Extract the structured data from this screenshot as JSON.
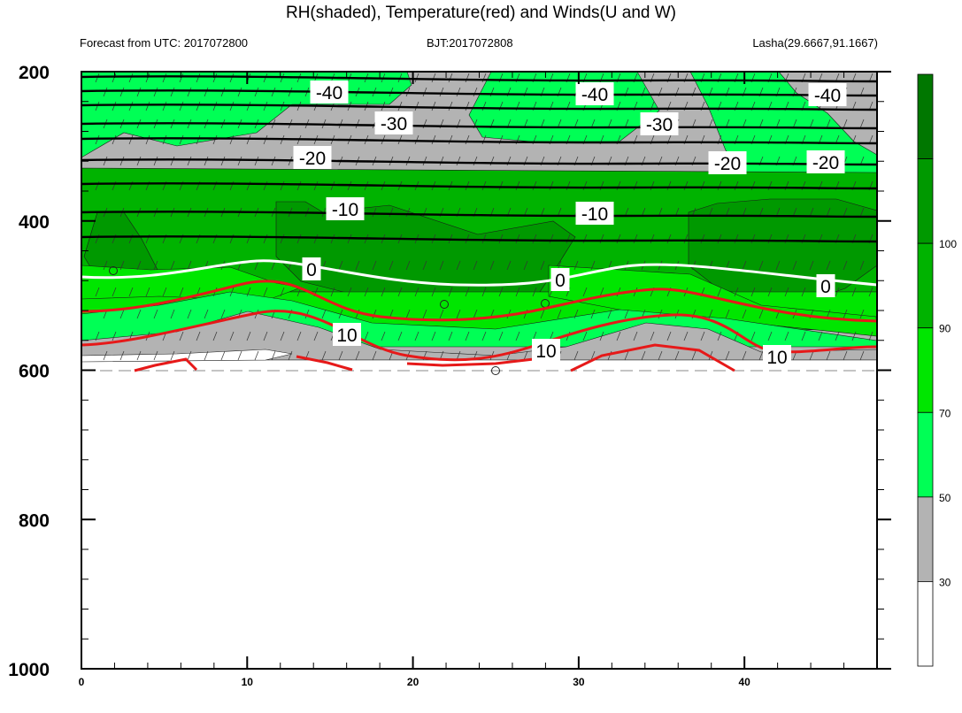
{
  "header": {
    "title": "RH(shaded), Temperature(red) and Winds(U and W)",
    "left": "Forecast from UTC: 2017072800",
    "center": "BJT:2017072808",
    "right": "Lasha(29.6667,91.1667)"
  },
  "chart_data": {
    "type": "contour",
    "title": "RH(shaded), Temperature(red) and Winds(U and W)",
    "x": {
      "range": [
        0,
        48
      ],
      "ticks": [
        "0",
        "10",
        "20",
        "30",
        "40"
      ]
    },
    "y": {
      "range": [
        200,
        1000
      ],
      "ticks": [
        "200",
        "400",
        "600",
        "800",
        "1000"
      ],
      "reversed": true
    },
    "colorbar": {
      "levels": [
        "30",
        "50",
        "70",
        "90",
        "100"
      ],
      "colors": [
        "#ffffff",
        "#b3b3b3",
        "#00ff55",
        "#00e600",
        "#00b300",
        "#009900",
        "#007700"
      ]
    },
    "contour_labels": {
      "cold": [
        "-40",
        "-40",
        "-40",
        "-30",
        "-30",
        "-20",
        "-20",
        "-20",
        "-10",
        "-10"
      ],
      "zero": [
        "0",
        "0",
        "0"
      ],
      "warm": [
        "10",
        "10",
        "10"
      ]
    },
    "isotherm_colors": {
      "cold": "#000000",
      "zero": "#ffffff",
      "warm": "#e61919"
    }
  }
}
